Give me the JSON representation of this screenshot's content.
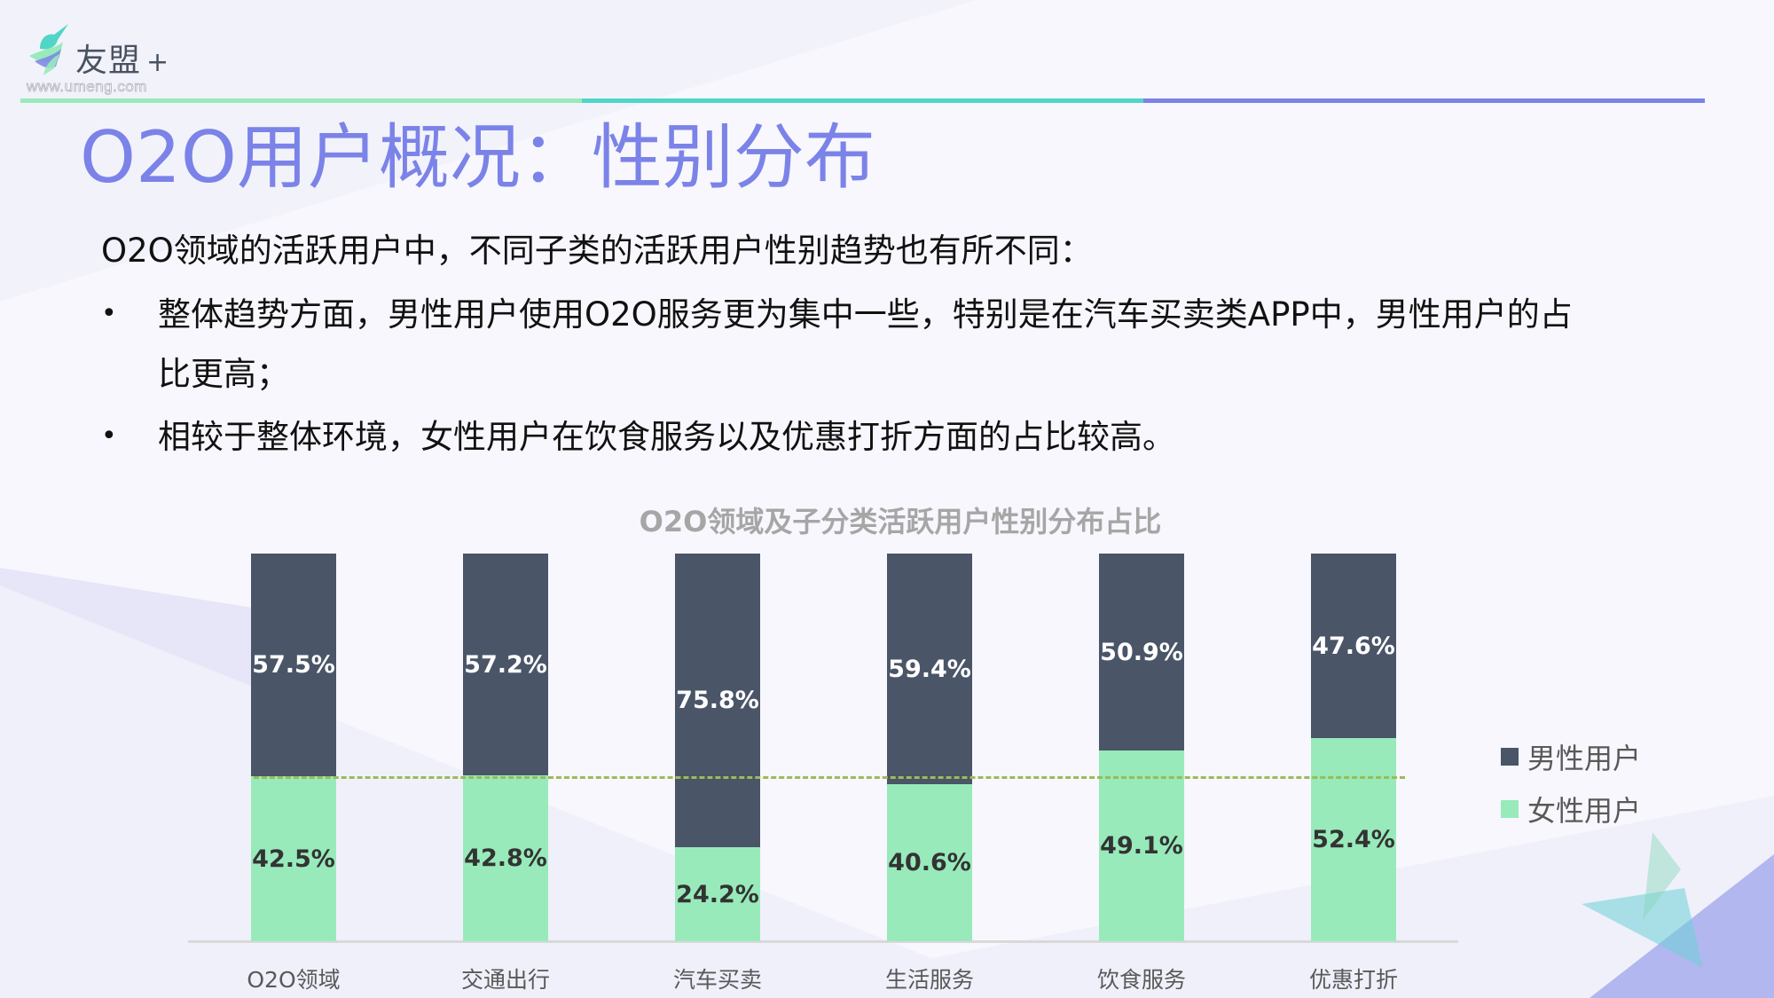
{
  "logo": {
    "brand": "友盟",
    "plus": "+",
    "url": "www.umeng.com",
    "icon": "hummingbird-logo-icon"
  },
  "header_rule_colors": [
    "#98eabb",
    "#4fd6c7",
    "#7b83e8"
  ],
  "title": "O2O用户概况：性别分布",
  "body": {
    "intro": "O2O领域的活跃用户中，不同子类的活跃用户性别趋势也有所不同：",
    "bullets": [
      {
        "line1": "整体趋势方面，男性用户使用O2O服务更为集中一些，特别是在汽车买卖类APP中，男性用户的占",
        "line2": "比更高；"
      },
      {
        "line1": "相较于整体环境，女性用户在饮食服务以及优惠打折方面的占比较高。"
      }
    ],
    "bullet_symbol": "•"
  },
  "legend": [
    {
      "label": "男性用户",
      "color": "#4a5568"
    },
    {
      "label": "女性用户",
      "color": "#98eabb"
    }
  ],
  "chart_data": {
    "type": "bar",
    "stacked": true,
    "normalized_percent": true,
    "title": "O2O领域及子分类活跃用户性别分布占比",
    "categories": [
      "O2O领域",
      "交通出行",
      "汽车买卖",
      "生活服务",
      "饮食服务",
      "优惠打折"
    ],
    "series": [
      {
        "name": "女性用户",
        "color": "#98eabb",
        "values": [
          42.5,
          42.8,
          24.2,
          40.6,
          49.1,
          52.4
        ],
        "labels": [
          "42.5%",
          "42.8%",
          "24.2%",
          "40.6%",
          "49.1%",
          "52.4%"
        ]
      },
      {
        "name": "男性用户",
        "color": "#4a5568",
        "values": [
          57.5,
          57.2,
          75.8,
          59.4,
          50.9,
          47.6
        ],
        "labels": [
          "57.5%",
          "57.2%",
          "75.8%",
          "59.4%",
          "50.9%",
          "47.6%"
        ]
      }
    ],
    "reference_line": {
      "value": 42.5,
      "style": "dashed",
      "color": "#9bbb59",
      "meaning": "O2O领域 overall female share"
    },
    "xlabel": "",
    "ylabel": "",
    "ylim": [
      0,
      100
    ],
    "grid": false,
    "legend_position": "right"
  }
}
